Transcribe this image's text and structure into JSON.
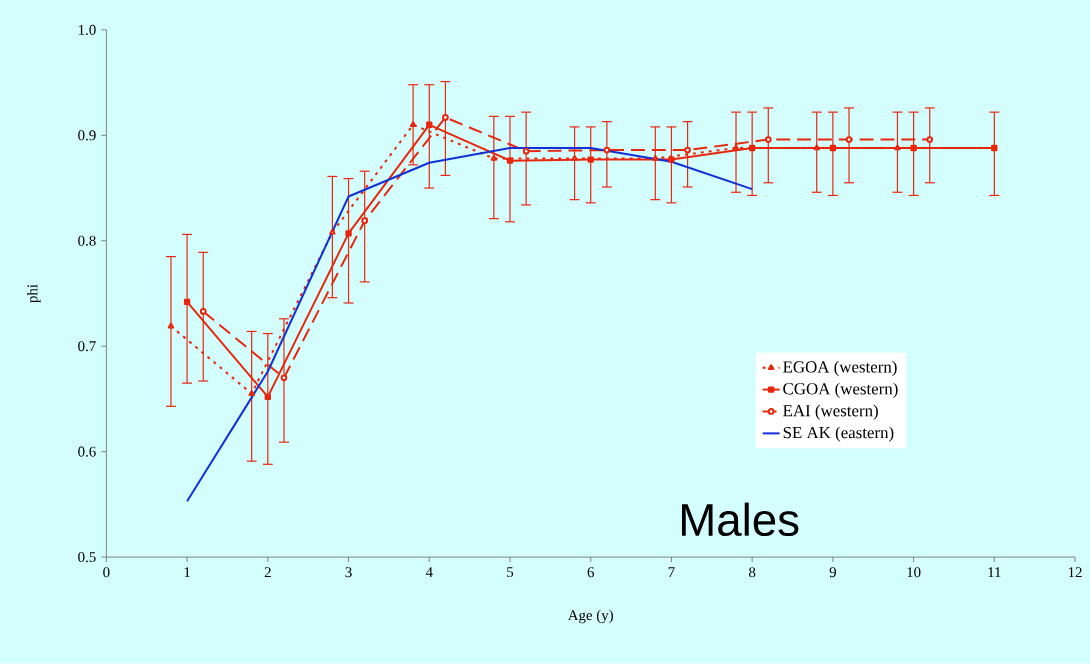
{
  "chart_data": {
    "type": "line",
    "xlabel": "Age (y)",
    "ylabel": "phi",
    "xlim": [
      0,
      12
    ],
    "xticks": [
      0,
      1,
      2,
      3,
      4,
      5,
      6,
      7,
      8,
      9,
      10,
      11,
      12
    ],
    "ylim": [
      0.5,
      1.0
    ],
    "yticks": [
      {
        "value": 0.5,
        "label": "0.5"
      },
      {
        "value": 0.6,
        "label": "0.6"
      },
      {
        "value": 0.7,
        "label": "0.7"
      },
      {
        "value": 0.8,
        "label": "0.8"
      },
      {
        "value": 0.9,
        "label": "0.9"
      },
      {
        "value": 1.0,
        "label": "1.0"
      }
    ],
    "legend": "bottom right",
    "grid": false,
    "annotations": [
      "Males"
    ],
    "series": [
      {
        "name": "EGOA (western)",
        "color": "#e8260c",
        "marker": "triangle",
        "line_style": "dotted",
        "x": [
          0.8,
          1.8,
          2.8,
          3.8,
          4.8,
          5.8,
          6.8,
          7.8,
          8.8,
          9.8
        ],
        "values": [
          0.719,
          0.655,
          0.808,
          0.91,
          0.878,
          0.878,
          0.878,
          0.888,
          0.888,
          0.888
        ],
        "errors": [
          [
            0.643,
            0.785
          ],
          [
            0.591,
            0.714
          ],
          [
            0.746,
            0.861
          ],
          [
            0.872,
            0.948
          ],
          [
            0.821,
            0.918
          ],
          [
            0.839,
            0.908
          ],
          [
            0.839,
            0.908
          ],
          [
            0.846,
            0.922
          ],
          [
            0.846,
            0.922
          ],
          [
            0.846,
            0.922
          ]
        ]
      },
      {
        "name": "CGOA (western)",
        "color": "#e8260c",
        "marker": "square",
        "line_style": "solid",
        "x": [
          1,
          2,
          3,
          4,
          5,
          6,
          7,
          8,
          9,
          10,
          11
        ],
        "values": [
          0.742,
          0.652,
          0.807,
          0.91,
          0.876,
          0.877,
          0.877,
          0.888,
          0.888,
          0.888,
          0.888
        ],
        "errors": [
          [
            0.665,
            0.806
          ],
          [
            0.588,
            0.712
          ],
          [
            0.741,
            0.859
          ],
          [
            0.85,
            0.948
          ],
          [
            0.818,
            0.918
          ],
          [
            0.836,
            0.908
          ],
          [
            0.836,
            0.908
          ],
          [
            0.843,
            0.922
          ],
          [
            0.843,
            0.922
          ],
          [
            0.843,
            0.922
          ],
          [
            0.843,
            0.922
          ]
        ]
      },
      {
        "name": "EAI (western)",
        "color": "#e8260c",
        "marker": "circle",
        "line_style": "dashed",
        "x": [
          1.2,
          2.2,
          3.2,
          4.2,
          5.2,
          6.2,
          7.2,
          8.2,
          9.2,
          10.2
        ],
        "values": [
          0.733,
          0.67,
          0.819,
          0.917,
          0.885,
          0.886,
          0.886,
          0.896,
          0.896,
          0.896
        ],
        "errors": [
          [
            0.667,
            0.789
          ],
          [
            0.609,
            0.726
          ],
          [
            0.761,
            0.866
          ],
          [
            0.862,
            0.951
          ],
          [
            0.834,
            0.922
          ],
          [
            0.851,
            0.913
          ],
          [
            0.851,
            0.913
          ],
          [
            0.855,
            0.926
          ],
          [
            0.855,
            0.926
          ],
          [
            0.855,
            0.926
          ]
        ]
      },
      {
        "name": "SE AK (eastern)",
        "color": "#1030d8",
        "marker": "none",
        "line_style": "solid",
        "x": [
          1,
          2,
          3,
          4,
          5,
          6,
          7,
          8
        ],
        "values": [
          0.553,
          0.676,
          0.842,
          0.874,
          0.888,
          0.888,
          0.875,
          0.849
        ]
      }
    ]
  }
}
